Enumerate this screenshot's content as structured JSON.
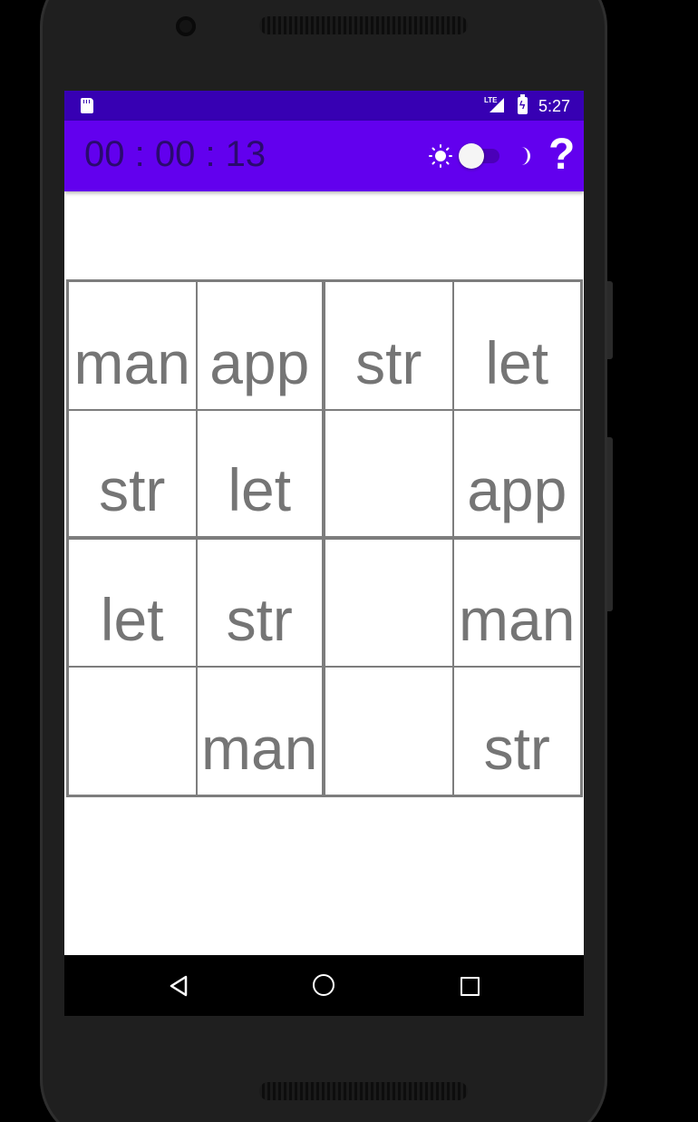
{
  "status_bar": {
    "network": "LTE",
    "time": "5:27",
    "sd_icon": "sd-card-icon",
    "battery_icon": "battery-charging-icon"
  },
  "app_bar": {
    "timer": "00 : 00 : 13",
    "theme_toggle": {
      "left_icon": "sun-icon",
      "right_icon": "moon-icon",
      "checked": false
    },
    "help_label": "?"
  },
  "grid": {
    "rows": [
      [
        "man",
        "app",
        "str",
        "let"
      ],
      [
        "str",
        "let",
        "",
        "app"
      ],
      [
        "let",
        "str",
        "",
        "man"
      ],
      [
        "",
        "man",
        "",
        "str"
      ]
    ]
  },
  "nav_bar": {
    "back_icon": "back-triangle-icon",
    "home_icon": "home-circle-icon",
    "recents_icon": "recents-square-icon"
  },
  "colors": {
    "status_bar": "#3700b3",
    "app_bar": "#6200ee",
    "timer_text": "#2a0a6e",
    "cell_text": "#757575",
    "grid_line": "#7d7d7d"
  }
}
